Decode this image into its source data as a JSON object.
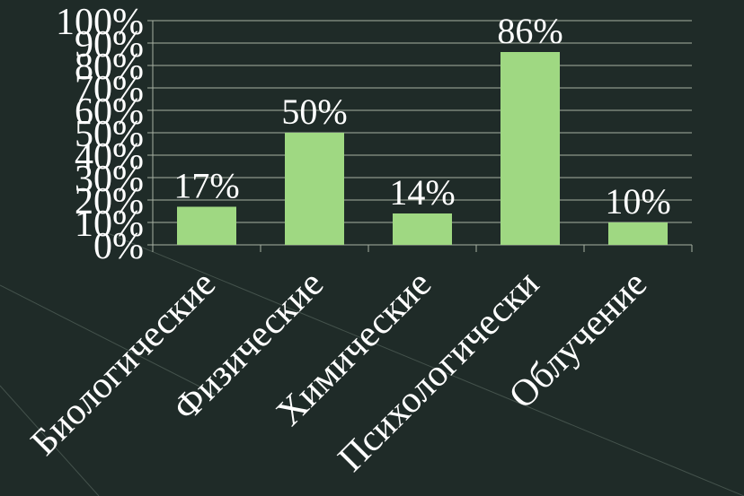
{
  "chart_data": {
    "type": "bar",
    "categories": [
      "Биологические",
      "Физические",
      "Химические",
      "Психологически",
      "Облучение"
    ],
    "values": [
      17,
      50,
      14,
      86,
      10
    ],
    "data_labels": [
      "17%",
      "50%",
      "14%",
      "86%",
      "10%"
    ],
    "y_ticks": [
      "0%",
      "10%",
      "20%",
      "30%",
      "40%",
      "50%",
      "60%",
      "70%",
      "80%",
      "90%",
      "100%"
    ],
    "ylim": [
      0,
      100
    ],
    "grid": true,
    "colors": {
      "background": "#1f2b28",
      "bar": "#9fd882",
      "gridline": "#a7b0a2",
      "text": "#ffffff"
    }
  }
}
